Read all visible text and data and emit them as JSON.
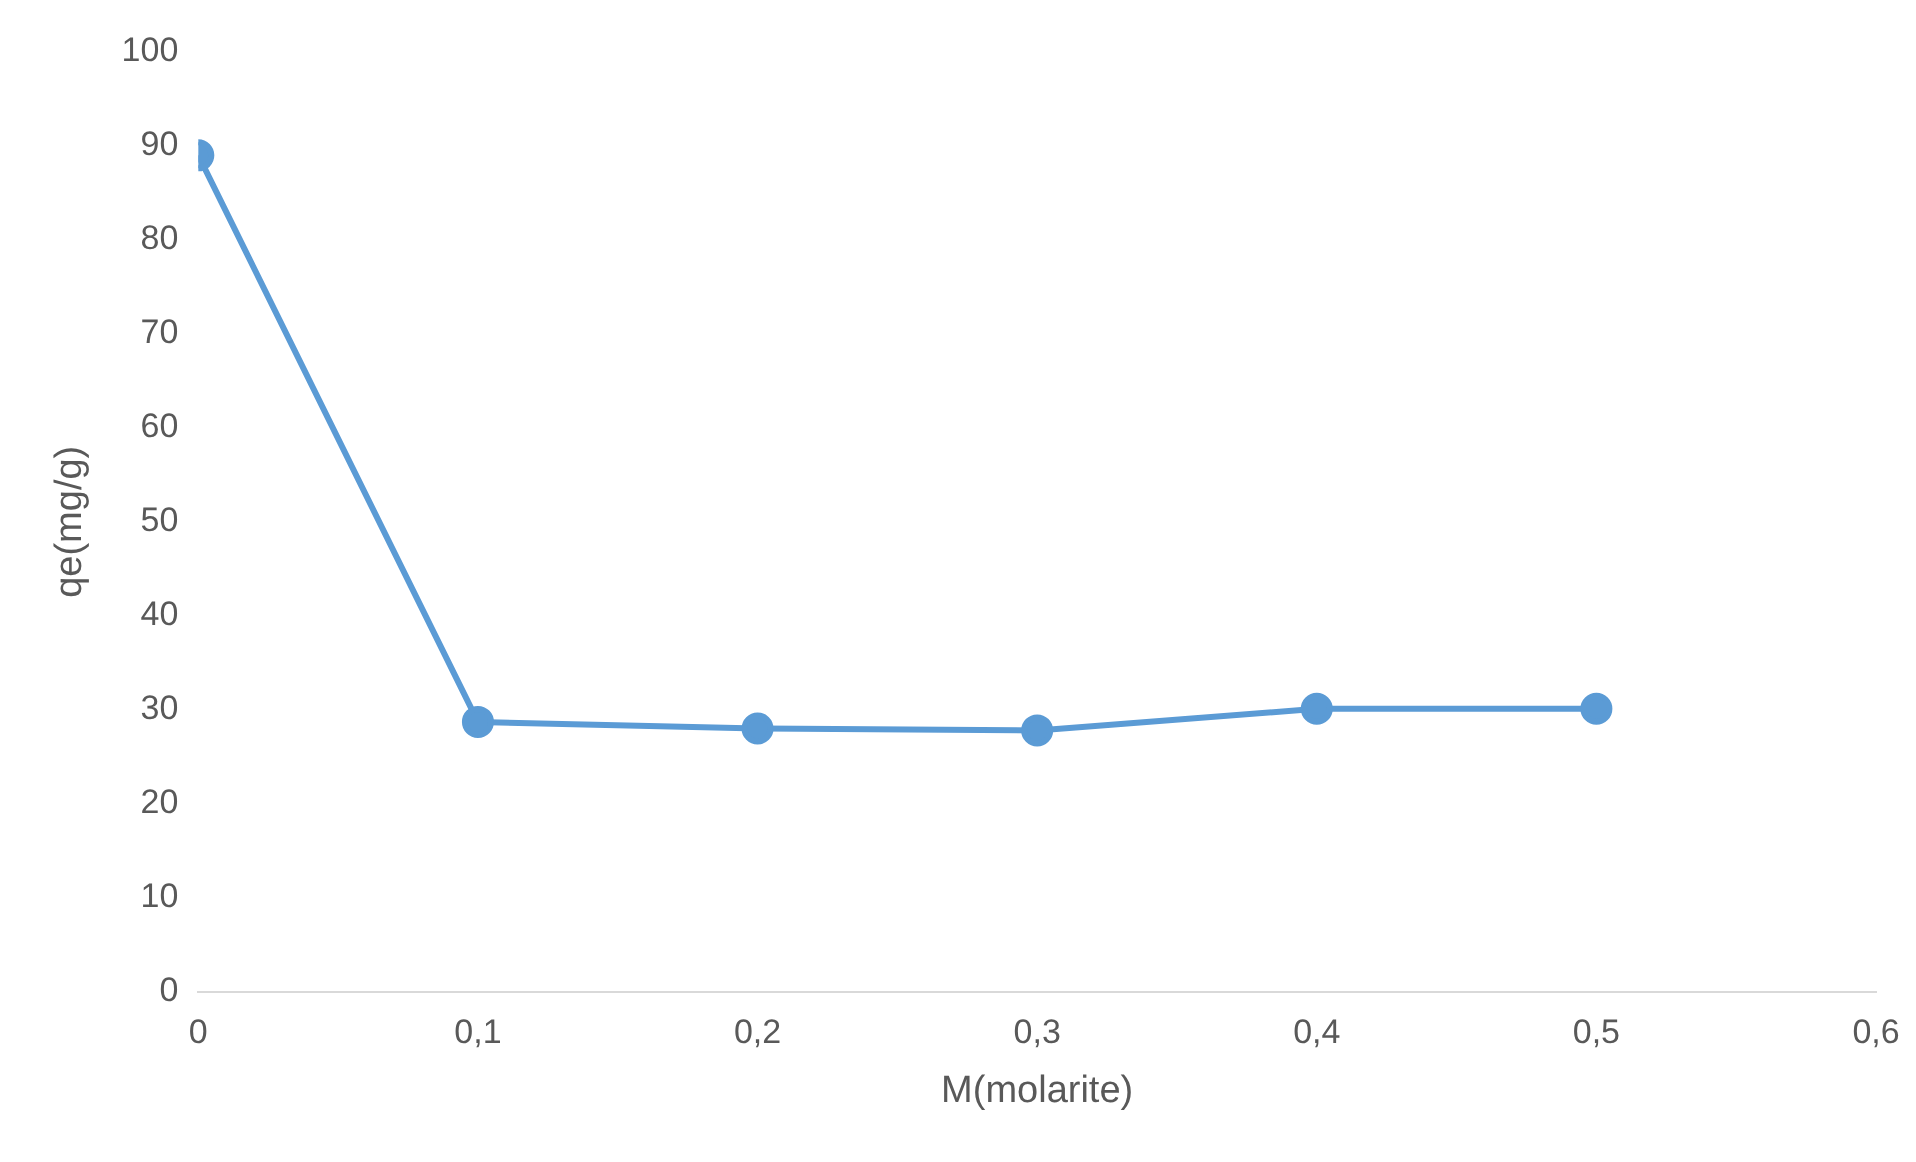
{
  "chart_data": {
    "type": "line",
    "xlabel": "M(molarite)",
    "ylabel": "qe(mg/g)",
    "x": [
      0,
      0.1,
      0.2,
      0.3,
      0.4,
      0.5
    ],
    "series": [
      {
        "color": "#5b9bd5",
        "values": [
          89,
          28.7,
          28,
          27.8,
          30.1,
          30.1
        ]
      }
    ],
    "xlim": [
      0,
      0.6
    ],
    "xticks": [
      0,
      {
        "value": 0.1,
        "label": "0,1"
      },
      {
        "value": 0.2,
        "label": "0,2"
      },
      {
        "value": 0.3,
        "label": "0,3"
      },
      {
        "value": 0.4,
        "label": "0,4"
      },
      {
        "value": 0.5,
        "label": "0,5"
      },
      {
        "value": 0.6,
        "label": "0,6"
      }
    ],
    "ylim": [
      0,
      100
    ],
    "yticks": [
      0,
      10,
      20,
      30,
      40,
      50,
      60,
      70,
      80,
      90,
      100
    ],
    "grid": false,
    "legend": false,
    "marker": "circle",
    "line_style": "solid"
  }
}
